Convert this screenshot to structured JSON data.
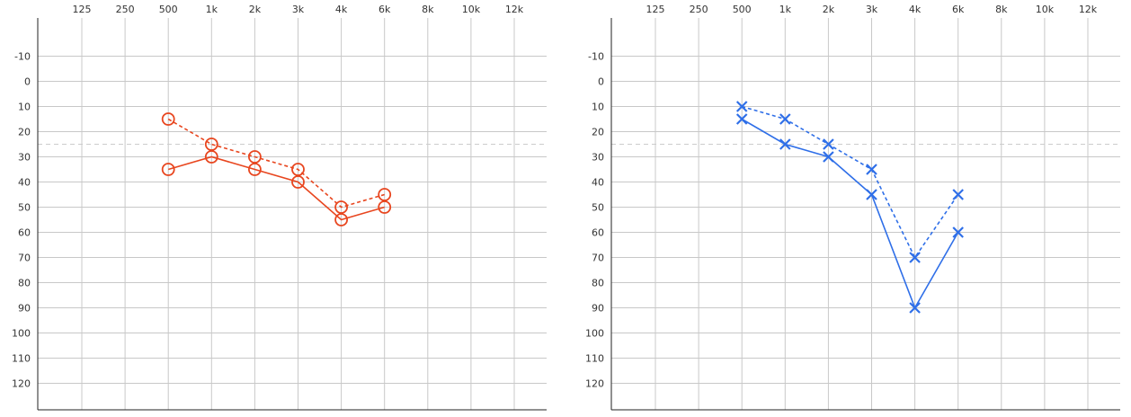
{
  "chart_data": [
    {
      "type": "line",
      "title": "",
      "xlabel": "",
      "ylabel": "",
      "categories": [
        "125",
        "250",
        "500",
        "1k",
        "2k",
        "3k",
        "4k",
        "6k",
        "8k",
        "10k",
        "12k"
      ],
      "y_ticks": [
        "-10",
        "0",
        "10",
        "20",
        "30",
        "40",
        "50",
        "60",
        "70",
        "80",
        "90",
        "100",
        "110",
        "120"
      ],
      "ylim": [
        -20,
        130
      ],
      "y_inverted": true,
      "grid": true,
      "reference_line": 25,
      "series": [
        {
          "marker": "circle",
          "line_style": "solid",
          "color": "#e8461f",
          "x": [
            "500",
            "1k",
            "2k",
            "3k",
            "4k",
            "6k"
          ],
          "values": [
            35,
            30,
            35,
            40,
            55,
            50
          ]
        },
        {
          "marker": "circle",
          "line_style": "dashed",
          "color": "#e8461f",
          "x": [
            "500",
            "1k",
            "2k",
            "3k",
            "4k",
            "6k"
          ],
          "values": [
            15,
            25,
            30,
            35,
            50,
            45
          ]
        }
      ]
    },
    {
      "type": "line",
      "title": "",
      "xlabel": "",
      "ylabel": "",
      "categories": [
        "125",
        "250",
        "500",
        "1k",
        "2k",
        "3k",
        "4k",
        "6k",
        "8k",
        "10k",
        "12k"
      ],
      "y_ticks": [
        "-10",
        "0",
        "10",
        "20",
        "30",
        "40",
        "50",
        "60",
        "70",
        "80",
        "90",
        "100",
        "110",
        "120"
      ],
      "ylim": [
        -20,
        130
      ],
      "y_inverted": true,
      "grid": true,
      "reference_line": 25,
      "series": [
        {
          "marker": "cross",
          "line_style": "solid",
          "color": "#2f6fe8",
          "x": [
            "500",
            "1k",
            "2k",
            "3k",
            "4k",
            "6k"
          ],
          "values": [
            15,
            25,
            30,
            45,
            90,
            60
          ]
        },
        {
          "marker": "cross",
          "line_style": "dashed",
          "color": "#2f6fe8",
          "x": [
            "500",
            "1k",
            "2k",
            "3k",
            "4k",
            "6k"
          ],
          "values": [
            10,
            15,
            25,
            35,
            70,
            45
          ]
        }
      ]
    }
  ],
  "style": {
    "grid_color": "#c8c8c8",
    "axis_color": "#222222",
    "reference_color": "#cccccc",
    "label_color": "#333333"
  }
}
